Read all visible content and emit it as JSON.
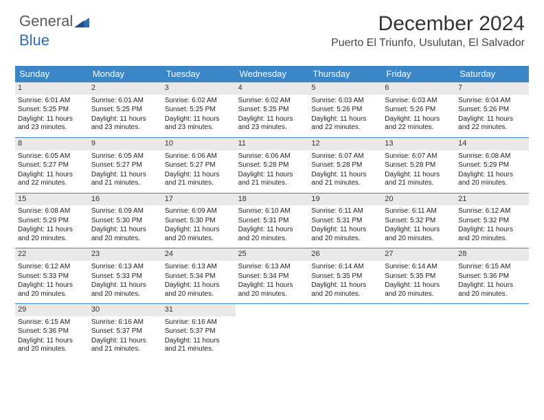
{
  "brand": {
    "part1": "General",
    "part2": "Blue"
  },
  "title": "December 2024",
  "location": "Puerto El Triunfo, Usulutan, El Salvador",
  "colors": {
    "header_bg": "#3b86c7",
    "header_text": "#ffffff",
    "daynum_bg": "#e9e9e9",
    "border": "#3b86c7",
    "brand_gray": "#5a5a5a",
    "brand_blue": "#2a6db8"
  },
  "weekdays": [
    "Sunday",
    "Monday",
    "Tuesday",
    "Wednesday",
    "Thursday",
    "Friday",
    "Saturday"
  ],
  "grid": {
    "columns": 7,
    "rows": 5,
    "start_weekday_index": 0
  },
  "days": [
    {
      "n": 1,
      "sunrise": "6:01 AM",
      "sunset": "5:25 PM",
      "daylight": "11 hours and 23 minutes."
    },
    {
      "n": 2,
      "sunrise": "6:01 AM",
      "sunset": "5:25 PM",
      "daylight": "11 hours and 23 minutes."
    },
    {
      "n": 3,
      "sunrise": "6:02 AM",
      "sunset": "5:25 PM",
      "daylight": "11 hours and 23 minutes."
    },
    {
      "n": 4,
      "sunrise": "6:02 AM",
      "sunset": "5:25 PM",
      "daylight": "11 hours and 23 minutes."
    },
    {
      "n": 5,
      "sunrise": "6:03 AM",
      "sunset": "5:26 PM",
      "daylight": "11 hours and 22 minutes."
    },
    {
      "n": 6,
      "sunrise": "6:03 AM",
      "sunset": "5:26 PM",
      "daylight": "11 hours and 22 minutes."
    },
    {
      "n": 7,
      "sunrise": "6:04 AM",
      "sunset": "5:26 PM",
      "daylight": "11 hours and 22 minutes."
    },
    {
      "n": 8,
      "sunrise": "6:05 AM",
      "sunset": "5:27 PM",
      "daylight": "11 hours and 22 minutes."
    },
    {
      "n": 9,
      "sunrise": "6:05 AM",
      "sunset": "5:27 PM",
      "daylight": "11 hours and 21 minutes."
    },
    {
      "n": 10,
      "sunrise": "6:06 AM",
      "sunset": "5:27 PM",
      "daylight": "11 hours and 21 minutes."
    },
    {
      "n": 11,
      "sunrise": "6:06 AM",
      "sunset": "5:28 PM",
      "daylight": "11 hours and 21 minutes."
    },
    {
      "n": 12,
      "sunrise": "6:07 AM",
      "sunset": "5:28 PM",
      "daylight": "11 hours and 21 minutes."
    },
    {
      "n": 13,
      "sunrise": "6:07 AM",
      "sunset": "5:28 PM",
      "daylight": "11 hours and 21 minutes."
    },
    {
      "n": 14,
      "sunrise": "6:08 AM",
      "sunset": "5:29 PM",
      "daylight": "11 hours and 20 minutes."
    },
    {
      "n": 15,
      "sunrise": "6:08 AM",
      "sunset": "5:29 PM",
      "daylight": "11 hours and 20 minutes."
    },
    {
      "n": 16,
      "sunrise": "6:09 AM",
      "sunset": "5:30 PM",
      "daylight": "11 hours and 20 minutes."
    },
    {
      "n": 17,
      "sunrise": "6:09 AM",
      "sunset": "5:30 PM",
      "daylight": "11 hours and 20 minutes."
    },
    {
      "n": 18,
      "sunrise": "6:10 AM",
      "sunset": "5:31 PM",
      "daylight": "11 hours and 20 minutes."
    },
    {
      "n": 19,
      "sunrise": "6:11 AM",
      "sunset": "5:31 PM",
      "daylight": "11 hours and 20 minutes."
    },
    {
      "n": 20,
      "sunrise": "6:11 AM",
      "sunset": "5:32 PM",
      "daylight": "11 hours and 20 minutes."
    },
    {
      "n": 21,
      "sunrise": "6:12 AM",
      "sunset": "5:32 PM",
      "daylight": "11 hours and 20 minutes."
    },
    {
      "n": 22,
      "sunrise": "6:12 AM",
      "sunset": "5:33 PM",
      "daylight": "11 hours and 20 minutes."
    },
    {
      "n": 23,
      "sunrise": "6:13 AM",
      "sunset": "5:33 PM",
      "daylight": "11 hours and 20 minutes."
    },
    {
      "n": 24,
      "sunrise": "6:13 AM",
      "sunset": "5:34 PM",
      "daylight": "11 hours and 20 minutes."
    },
    {
      "n": 25,
      "sunrise": "6:13 AM",
      "sunset": "5:34 PM",
      "daylight": "11 hours and 20 minutes."
    },
    {
      "n": 26,
      "sunrise": "6:14 AM",
      "sunset": "5:35 PM",
      "daylight": "11 hours and 20 minutes."
    },
    {
      "n": 27,
      "sunrise": "6:14 AM",
      "sunset": "5:35 PM",
      "daylight": "11 hours and 20 minutes."
    },
    {
      "n": 28,
      "sunrise": "6:15 AM",
      "sunset": "5:36 PM",
      "daylight": "11 hours and 20 minutes."
    },
    {
      "n": 29,
      "sunrise": "6:15 AM",
      "sunset": "5:36 PM",
      "daylight": "11 hours and 20 minutes."
    },
    {
      "n": 30,
      "sunrise": "6:16 AM",
      "sunset": "5:37 PM",
      "daylight": "11 hours and 21 minutes."
    },
    {
      "n": 31,
      "sunrise": "6:16 AM",
      "sunset": "5:37 PM",
      "daylight": "11 hours and 21 minutes."
    }
  ],
  "labels": {
    "sunrise": "Sunrise:",
    "sunset": "Sunset:",
    "daylight": "Daylight:"
  }
}
